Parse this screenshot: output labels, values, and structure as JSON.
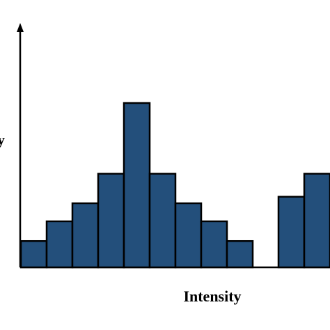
{
  "chart_data": {
    "type": "bar",
    "xlabel": "Intensity",
    "ylabel_fragment": "y",
    "ylim": [
      0,
      10
    ],
    "grid": false,
    "legend": "none",
    "bar_color": "#234f7b",
    "bins": [
      {
        "index": 0,
        "value": 1.6
      },
      {
        "index": 1,
        "value": 2.8
      },
      {
        "index": 2,
        "value": 3.9
      },
      {
        "index": 3,
        "value": 5.7
      },
      {
        "index": 4,
        "value": 10.0
      },
      {
        "index": 5,
        "value": 5.7
      },
      {
        "index": 6,
        "value": 3.9
      },
      {
        "index": 7,
        "value": 2.8
      },
      {
        "index": 8,
        "value": 1.6
      },
      {
        "index": 9,
        "value": 0
      },
      {
        "index": 10,
        "value": 4.3
      },
      {
        "index": 11,
        "value": 5.7
      }
    ]
  }
}
